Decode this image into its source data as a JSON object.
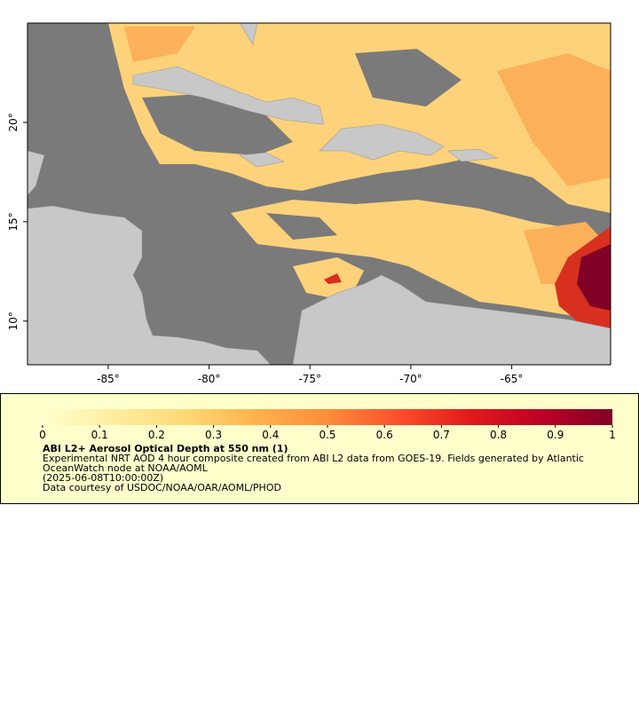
{
  "map": {
    "xlim": [
      -89,
      -60.1
    ],
    "ylim": [
      7.8,
      25
    ],
    "xticks": [
      {
        "value": -85,
        "label": "-85°"
      },
      {
        "value": -80,
        "label": "-80°"
      },
      {
        "value": -75,
        "label": "-75°"
      },
      {
        "value": -70,
        "label": "-70°"
      },
      {
        "value": -65,
        "label": "-65°"
      }
    ],
    "yticks": [
      {
        "value": 10,
        "label": "10°"
      },
      {
        "value": 15,
        "label": "15°"
      },
      {
        "value": 20,
        "label": "20°"
      }
    ]
  },
  "colorbar": {
    "lim": [
      0,
      1
    ],
    "ticks": [
      0,
      0.1,
      0.2,
      0.3,
      0.4,
      0.5,
      0.6,
      0.7,
      0.8,
      0.9,
      1
    ],
    "colors": [
      "#ffffcc",
      "#ffeda0",
      "#fed976",
      "#feb24c",
      "#fd8d3c",
      "#fc4e2a",
      "#e31a1c",
      "#bd0026",
      "#800026"
    ]
  },
  "caption": {
    "title": "ABI L2+ Aerosol Optical Depth at 550 nm (1)",
    "description": "Experimental NRT AOD 4 hour composite created from ABI L2 data from GOES-19. Fields generated by Atlantic OceanWatch node at NOAA/AOML",
    "time": "(2025-06-08T10:00:00Z)",
    "credit": "Data courtesy of USDOC/NOAA/OAR/AOML/PHOD"
  }
}
